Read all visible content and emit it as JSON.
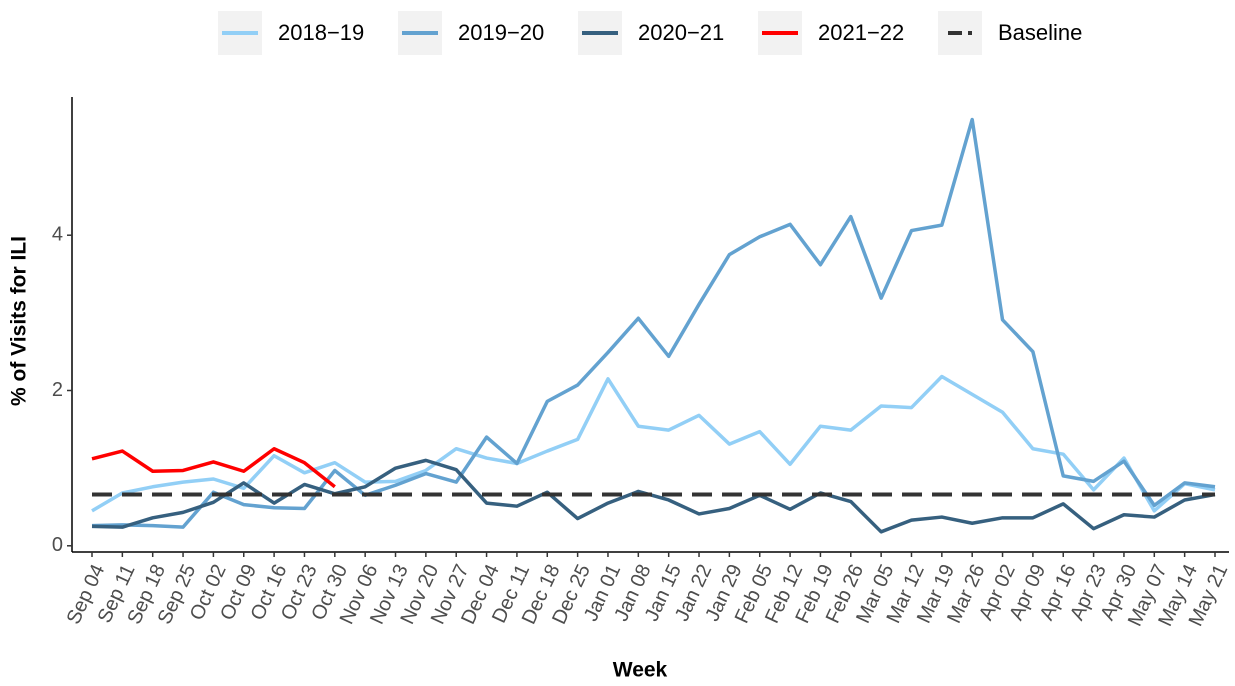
{
  "chart_data": {
    "type": "line",
    "x_label": "Week",
    "y_label": "% of Visits for ILI",
    "categories": [
      "Sep 04",
      "Sep 11",
      "Sep 18",
      "Sep 25",
      "Oct 02",
      "Oct 09",
      "Oct 16",
      "Oct 23",
      "Oct 30",
      "Nov 06",
      "Nov 13",
      "Nov 20",
      "Nov 27",
      "Dec 04",
      "Dec 11",
      "Dec 18",
      "Dec 25",
      "Jan 01",
      "Jan 08",
      "Jan 15",
      "Jan 22",
      "Jan 29",
      "Feb 05",
      "Feb 12",
      "Feb 19",
      "Feb 26",
      "Mar 05",
      "Mar 12",
      "Mar 19",
      "Mar 26",
      "Apr 02",
      "Apr 09",
      "Apr 16",
      "Apr 23",
      "Apr 30",
      "May 07",
      "May 14",
      "May 21"
    ],
    "series": [
      {
        "name": "2018−19",
        "color": "#92cff6",
        "values": [
          0.45,
          0.68,
          0.76,
          0.82,
          0.86,
          0.74,
          1.16,
          0.94,
          1.07,
          0.82,
          0.83,
          0.97,
          1.25,
          1.13,
          1.06,
          1.22,
          1.37,
          2.15,
          1.54,
          1.49,
          1.68,
          1.31,
          1.47,
          1.05,
          1.54,
          1.49,
          1.8,
          1.78,
          2.18,
          1.95,
          1.72,
          1.25,
          1.18,
          0.72,
          1.13,
          0.45,
          0.8,
          0.72
        ]
      },
      {
        "name": "2019−20",
        "color": "#63a2d0",
        "values": [
          0.26,
          0.27,
          0.26,
          0.24,
          0.69,
          0.53,
          0.49,
          0.48,
          0.97,
          0.65,
          0.78,
          0.93,
          0.82,
          1.4,
          1.06,
          1.86,
          2.07,
          2.49,
          2.93,
          2.44,
          3.11,
          3.75,
          3.98,
          4.14,
          3.62,
          4.24,
          3.19,
          4.06,
          4.13,
          5.49,
          2.91,
          2.5,
          0.9,
          0.83,
          1.09,
          0.52,
          0.81,
          0.76
        ]
      },
      {
        "name": "2020−21",
        "color": "#36607f",
        "values": [
          0.25,
          0.24,
          0.36,
          0.43,
          0.56,
          0.81,
          0.55,
          0.79,
          0.67,
          0.76,
          1.0,
          1.1,
          0.98,
          0.55,
          0.51,
          0.69,
          0.35,
          0.55,
          0.7,
          0.59,
          0.41,
          0.48,
          0.65,
          0.47,
          0.68,
          0.57,
          0.18,
          0.33,
          0.37,
          0.29,
          0.36,
          0.36,
          0.54,
          0.22,
          0.4,
          0.37,
          0.59,
          0.66
        ]
      },
      {
        "name": "2021−22",
        "color": "#ff0000",
        "values": [
          1.12,
          1.22,
          0.96,
          0.97,
          1.08,
          0.96,
          1.25,
          1.07,
          0.76,
          null,
          null,
          null,
          null,
          null,
          null,
          null,
          null,
          null,
          null,
          null,
          null,
          null,
          null,
          null,
          null,
          null,
          null,
          null,
          null,
          null,
          null,
          null,
          null,
          null,
          null,
          null,
          null,
          null
        ]
      }
    ],
    "baseline": {
      "name": "Baseline",
      "value": 0.66,
      "color": "#333333"
    },
    "ylim": [
      -0.08,
      5.78
    ],
    "yticks": [
      0,
      2,
      4
    ],
    "grid": false,
    "legend": "top"
  }
}
